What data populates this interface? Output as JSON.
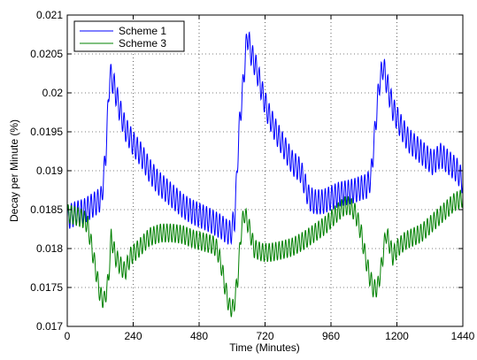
{
  "chart_data": {
    "type": "line",
    "title": "",
    "xlabel": "Time (Minutes)",
    "ylabel": "Decay per Minute (%)",
    "xlim": [
      0,
      1440
    ],
    "ylim": [
      0.017,
      0.021
    ],
    "xticks": [
      0,
      240,
      480,
      720,
      960,
      1200,
      1440
    ],
    "xtick_labels": [
      "0",
      "240",
      "480",
      "720",
      "960",
      "1200",
      "1440"
    ],
    "yticks": [
      0.017,
      0.0175,
      0.018,
      0.0185,
      0.019,
      0.0195,
      0.02,
      0.0205,
      0.021
    ],
    "ytick_labels": [
      "0.017",
      "0.0175",
      "0.018",
      "0.0185",
      "0.019",
      "0.0195",
      "0.02",
      "0.0205",
      "0.021"
    ],
    "grid": true,
    "legend_position": "top-left",
    "series": [
      {
        "name": "Scheme 1",
        "color": "#0000ff",
        "points": [
          [
            0,
            0.0184
          ],
          [
            30,
            0.01845
          ],
          [
            60,
            0.01848
          ],
          [
            90,
            0.01855
          ],
          [
            110,
            0.0186
          ],
          [
            125,
            0.01865
          ],
          [
            140,
            0.0192
          ],
          [
            155,
            0.02025
          ],
          [
            170,
            0.0201
          ],
          [
            190,
            0.0198
          ],
          [
            210,
            0.01955
          ],
          [
            240,
            0.01935
          ],
          [
            270,
            0.0192
          ],
          [
            300,
            0.019
          ],
          [
            330,
            0.01885
          ],
          [
            360,
            0.01875
          ],
          [
            390,
            0.01865
          ],
          [
            420,
            0.01855
          ],
          [
            450,
            0.01848
          ],
          [
            480,
            0.01843
          ],
          [
            510,
            0.01838
          ],
          [
            540,
            0.01832
          ],
          [
            560,
            0.01828
          ],
          [
            580,
            0.01822
          ],
          [
            595,
            0.0182
          ],
          [
            610,
            0.0184
          ],
          [
            625,
            0.0195
          ],
          [
            640,
            0.0201
          ],
          [
            655,
            0.02075
          ],
          [
            670,
            0.0205
          ],
          [
            690,
            0.0203
          ],
          [
            710,
            0.02
          ],
          [
            730,
            0.01975
          ],
          [
            760,
            0.0195
          ],
          [
            790,
            0.0193
          ],
          [
            820,
            0.0191
          ],
          [
            850,
            0.019
          ],
          [
            880,
            0.01865
          ],
          [
            900,
            0.0186
          ],
          [
            930,
            0.0186
          ],
          [
            960,
            0.01865
          ],
          [
            990,
            0.0187
          ],
          [
            1020,
            0.01872
          ],
          [
            1050,
            0.01875
          ],
          [
            1070,
            0.01878
          ],
          [
            1090,
            0.0188
          ],
          [
            1105,
            0.0189
          ],
          [
            1120,
            0.0195
          ],
          [
            1135,
            0.0201
          ],
          [
            1150,
            0.02035
          ],
          [
            1165,
            0.0201
          ],
          [
            1185,
            0.0198
          ],
          [
            1210,
            0.0196
          ],
          [
            1240,
            0.0194
          ],
          [
            1270,
            0.0193
          ],
          [
            1300,
            0.0192
          ],
          [
            1330,
            0.0191
          ],
          [
            1360,
            0.0192
          ],
          [
            1390,
            0.0191
          ],
          [
            1420,
            0.019
          ],
          [
            1440,
            0.01885
          ]
        ]
      },
      {
        "name": "Scheme 3",
        "color": "#008000",
        "points": [
          [
            0,
            0.01845
          ],
          [
            30,
            0.01842
          ],
          [
            60,
            0.01838
          ],
          [
            75,
            0.0183
          ],
          [
            90,
            0.018
          ],
          [
            105,
            0.0177
          ],
          [
            120,
            0.0174
          ],
          [
            135,
            0.01733
          ],
          [
            150,
            0.0176
          ],
          [
            160,
            0.01815
          ],
          [
            175,
            0.0179
          ],
          [
            190,
            0.0178
          ],
          [
            210,
            0.0177
          ],
          [
            230,
            0.0179
          ],
          [
            260,
            0.018
          ],
          [
            300,
            0.01815
          ],
          [
            340,
            0.0182
          ],
          [
            380,
            0.0182
          ],
          [
            420,
            0.01818
          ],
          [
            460,
            0.01812
          ],
          [
            500,
            0.01808
          ],
          [
            530,
            0.01805
          ],
          [
            545,
            0.018
          ],
          [
            560,
            0.0178
          ],
          [
            575,
            0.0175
          ],
          [
            590,
            0.01725
          ],
          [
            605,
            0.01723
          ],
          [
            620,
            0.0176
          ],
          [
            635,
            0.0183
          ],
          [
            645,
            0.01845
          ],
          [
            660,
            0.0183
          ],
          [
            680,
            0.018
          ],
          [
            710,
            0.01795
          ],
          [
            740,
            0.01795
          ],
          [
            780,
            0.01798
          ],
          [
            820,
            0.01802
          ],
          [
            860,
            0.0181
          ],
          [
            900,
            0.0182
          ],
          [
            940,
            0.0183
          ],
          [
            980,
            0.01845
          ],
          [
            1010,
            0.01855
          ],
          [
            1030,
            0.01855
          ],
          [
            1050,
            0.01845
          ],
          [
            1070,
            0.0182
          ],
          [
            1085,
            0.0179
          ],
          [
            1100,
            0.01765
          ],
          [
            1115,
            0.01748
          ],
          [
            1130,
            0.0175
          ],
          [
            1145,
            0.0178
          ],
          [
            1160,
            0.0182
          ],
          [
            1170,
            0.0181
          ],
          [
            1185,
            0.0179
          ],
          [
            1200,
            0.018
          ],
          [
            1230,
            0.0181
          ],
          [
            1260,
            0.01815
          ],
          [
            1290,
            0.0182
          ],
          [
            1320,
            0.0183
          ],
          [
            1350,
            0.0184
          ],
          [
            1380,
            0.0185
          ],
          [
            1410,
            0.0186
          ],
          [
            1440,
            0.01865
          ]
        ],
        "ripple": 0.00012
      }
    ]
  }
}
